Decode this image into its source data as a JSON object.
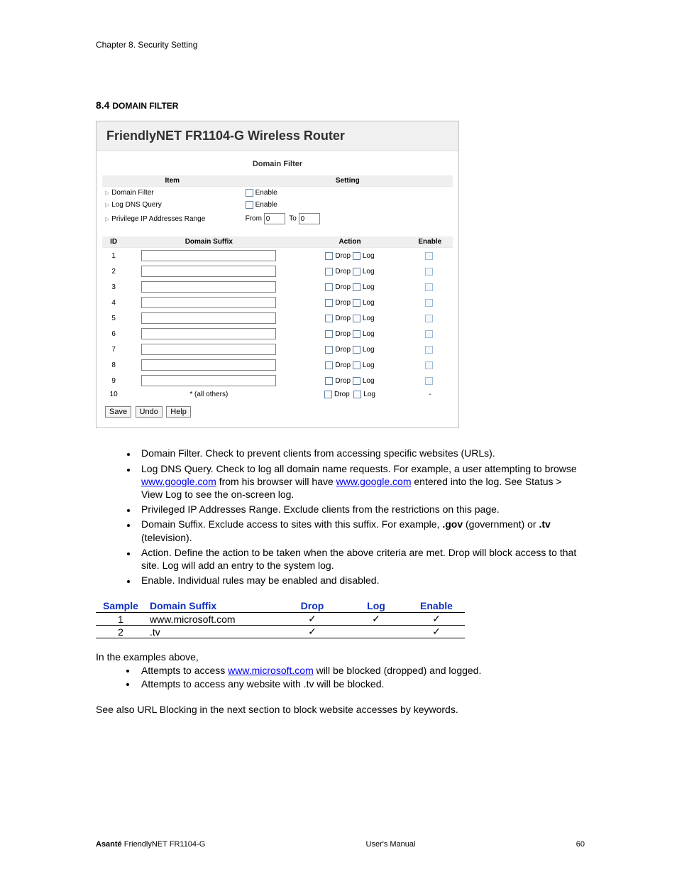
{
  "chapter_header": "Chapter 8. Security Setting",
  "section_number": "8.4 ",
  "section_title": "Domain Filter",
  "router": {
    "title": "FriendlyNET FR1104-G Wireless Router",
    "subtitle": "Domain Filter",
    "settings_headers": {
      "item": "Item",
      "setting": "Setting"
    },
    "settings": {
      "domain_filter_label": "Domain Filter",
      "log_dns_label": "Log DNS Query",
      "priv_ip_label": "Privilege IP Addresses Range",
      "enable_label": "Enable",
      "from_label": "From",
      "to_label": "To",
      "from_value": "0",
      "to_value": "0"
    },
    "filter_headers": {
      "id": "ID",
      "suffix": "Domain Suffix",
      "action": "Action",
      "enable": "Enable"
    },
    "drop_label": "Drop",
    "log_label": "Log",
    "rows": [
      {
        "id": "1"
      },
      {
        "id": "2"
      },
      {
        "id": "3"
      },
      {
        "id": "4"
      },
      {
        "id": "5"
      },
      {
        "id": "6"
      },
      {
        "id": "7"
      },
      {
        "id": "8"
      },
      {
        "id": "9"
      }
    ],
    "last_row": {
      "id": "10",
      "suffix": "* (all others)",
      "enable": "-"
    },
    "buttons": {
      "save": "Save",
      "undo": "Undo",
      "help": "Help"
    }
  },
  "descriptions": [
    {
      "text": "Domain Filter. Check to prevent clients from accessing specific websites (URLs)."
    },
    {
      "pre": "Log DNS Query. Check to log all domain name requests. For example, a user attempting to browse ",
      "link1": "www.google.com",
      "mid": " from his browser will have ",
      "link2": "www.google.com",
      "post": " entered into the log. See Status > View Log to see the on-screen log."
    },
    {
      "text": "Privileged IP Addresses Range. Exclude clients from the restrictions on this page."
    },
    {
      "pre": "Domain Suffix. Exclude access to sites with this suffix. For example, ",
      "bold1": ".gov",
      "mid": " (government) or ",
      "bold2": ".tv",
      "post": " (television)."
    },
    {
      "text": "Action. Define the action to be taken when the above criteria are met. Drop will block access to that site. Log will add an entry to the system log."
    },
    {
      "text": "Enable. Individual rules may be enabled and disabled."
    }
  ],
  "sample_table": {
    "headers": {
      "sample": "Sample",
      "suffix": "Domain Suffix",
      "drop": "Drop",
      "log": "Log",
      "enable": "Enable"
    },
    "rows": [
      {
        "n": "1",
        "suffix": "www.microsoft.com",
        "drop": "✓",
        "log": "✓",
        "enable": "✓"
      },
      {
        "n": "2",
        "suffix": ".tv",
        "drop": "✓",
        "log": "",
        "enable": "✓"
      }
    ]
  },
  "examples_intro": "In the examples above,",
  "examples": [
    {
      "pre": "Attempts to access ",
      "link": "www.microsoft.com",
      "post": " will be blocked (dropped) and logged."
    },
    {
      "text": "Attempts to access any website with .tv will be blocked."
    }
  ],
  "see_also": "See also URL Blocking in the next section to block website accesses by keywords.",
  "footer": {
    "brand": "Asanté",
    "product": " FriendlyNET FR1104-G",
    "center": "User's Manual",
    "page": "60"
  }
}
